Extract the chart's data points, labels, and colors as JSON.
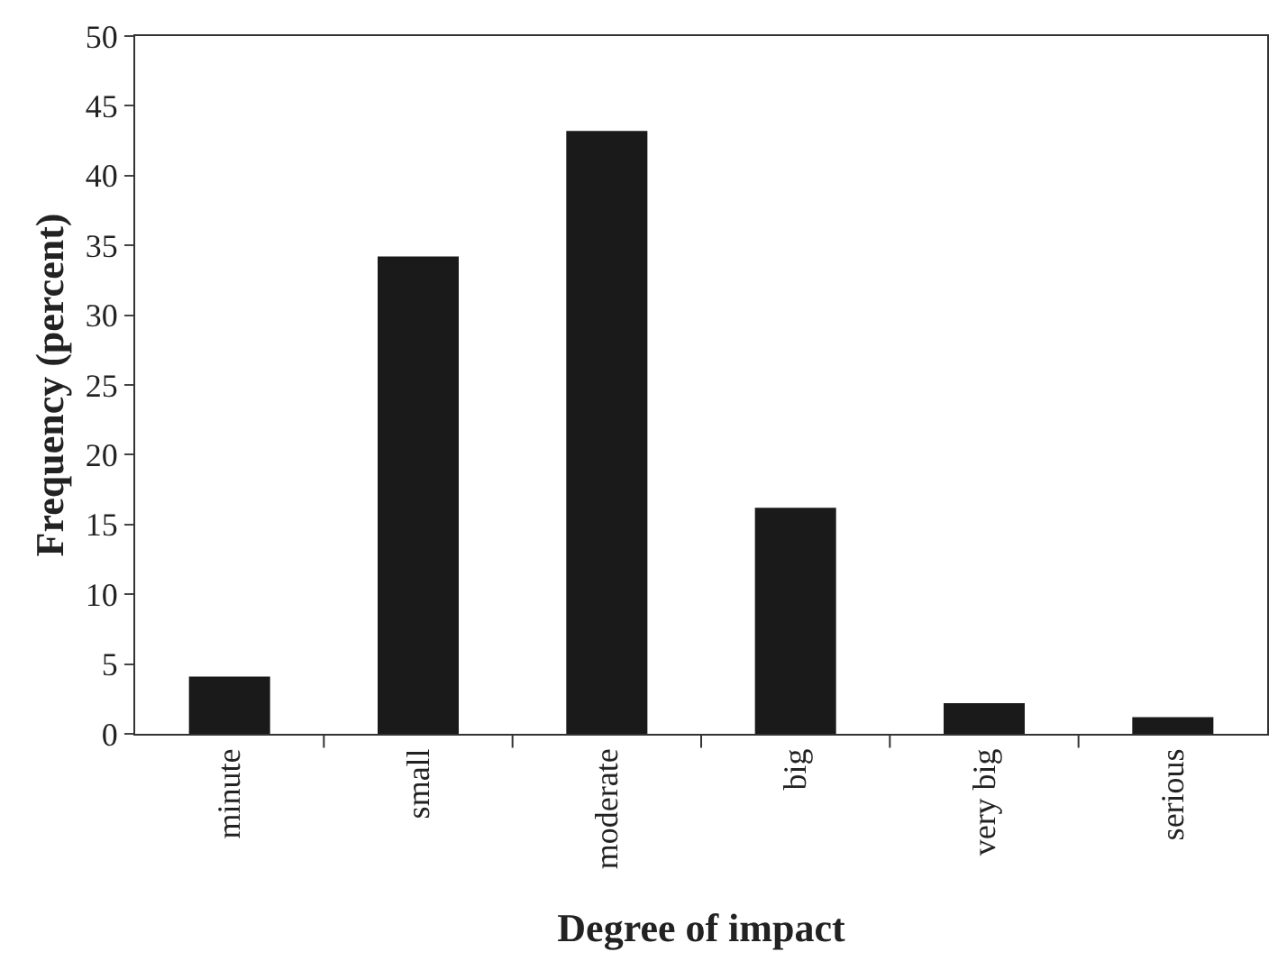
{
  "chart_data": {
    "type": "bar",
    "xlabel": "Degree of impact",
    "ylabel": "Frequency (percent)",
    "categories": [
      "minute",
      "small",
      "moderate",
      "big",
      "very big",
      "serious"
    ],
    "values": [
      4.1,
      34.2,
      43.2,
      16.2,
      2.2,
      1.2
    ],
    "color": "#1a1a1a",
    "ylim": [
      0,
      50
    ],
    "yticks": [
      0,
      5,
      10,
      15,
      20,
      25,
      30,
      35,
      40,
      45,
      50
    ]
  }
}
